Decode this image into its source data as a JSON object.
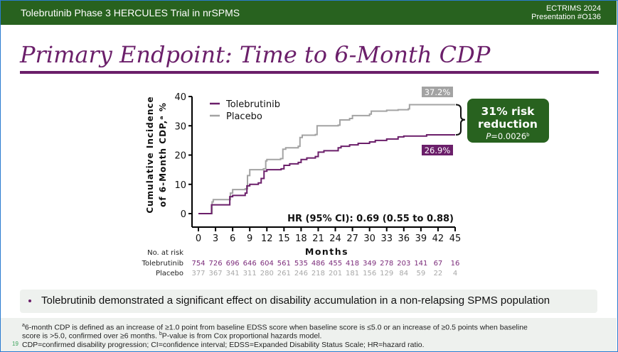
{
  "header": {
    "title": "Tolebrutinib Phase 3 HERCULES Trial in nrSPMS",
    "conference": "ECTRIMS 2024",
    "presentation": "Presentation #O136"
  },
  "slide_title": "Primary Endpoint: Time to 6-Month CDP",
  "chart_data": {
    "type": "line",
    "title": "",
    "xlabel": "Months",
    "ylabel": "Cumulative Incidence of 6-Month CDP,ᵃ %",
    "ylabel_line1": "Cumulative Incidence",
    "ylabel_line2": "of 6-Month CDP,ᵃ %",
    "xlim": [
      0,
      45
    ],
    "ylim": [
      0,
      40
    ],
    "xticks": [
      0,
      3,
      6,
      9,
      12,
      15,
      18,
      21,
      24,
      27,
      30,
      33,
      36,
      39,
      42,
      45
    ],
    "xtick_labels": [
      "0",
      "3",
      "6",
      "9",
      "12",
      "15",
      "18",
      "21",
      "24",
      "27",
      "30",
      "33",
      "36",
      "39",
      "42",
      "45"
    ],
    "yticks": [
      0,
      10,
      20,
      30,
      40
    ],
    "ytick_labels": [
      "0",
      "10",
      "20",
      "30",
      "40"
    ],
    "legend_position": "top-left",
    "grid": false,
    "series": [
      {
        "name": "Tolebrutinib",
        "color": "#6b1f6a",
        "steps": [
          [
            0,
            0
          ],
          [
            2.2,
            0
          ],
          [
            2.3,
            3
          ],
          [
            5.3,
            3
          ],
          [
            5.5,
            5.8
          ],
          [
            6,
            6.2
          ],
          [
            8.2,
            7
          ],
          [
            8.5,
            9.5
          ],
          [
            9,
            10
          ],
          [
            10.5,
            10.5
          ],
          [
            11,
            12
          ],
          [
            11.5,
            14.5
          ],
          [
            12,
            15
          ],
          [
            14.5,
            15.3
          ],
          [
            15,
            16.5
          ],
          [
            16,
            17
          ],
          [
            17.5,
            17.5
          ],
          [
            18,
            18.5
          ],
          [
            19,
            19
          ],
          [
            20.5,
            19.5
          ],
          [
            21,
            21
          ],
          [
            22,
            21.5
          ],
          [
            24.5,
            22.5
          ],
          [
            25,
            23
          ],
          [
            26.5,
            23.5
          ],
          [
            28,
            24
          ],
          [
            30,
            24.5
          ],
          [
            31,
            25
          ],
          [
            33,
            25.5
          ],
          [
            35,
            26.2
          ],
          [
            36,
            26.5
          ],
          [
            40,
            26.9
          ],
          [
            45,
            26.9
          ]
        ],
        "end_label": "26.9%"
      },
      {
        "name": "Placebo",
        "color": "#a3a3a3",
        "steps": [
          [
            0,
            0
          ],
          [
            2.2,
            0
          ],
          [
            2.4,
            4
          ],
          [
            2.6,
            4.8
          ],
          [
            5.4,
            4.8
          ],
          [
            5.6,
            7
          ],
          [
            6,
            8.2
          ],
          [
            8.2,
            8.5
          ],
          [
            8.6,
            13
          ],
          [
            9,
            15
          ],
          [
            11.4,
            15.3
          ],
          [
            11.8,
            18
          ],
          [
            12,
            18.5
          ],
          [
            14.4,
            18.8
          ],
          [
            14.8,
            22
          ],
          [
            15.3,
            22.5
          ],
          [
            17.5,
            23
          ],
          [
            17.8,
            26
          ],
          [
            18.2,
            26.8
          ],
          [
            20.5,
            27
          ],
          [
            20.8,
            30
          ],
          [
            24.5,
            30.2
          ],
          [
            24.8,
            32
          ],
          [
            26.5,
            32.5
          ],
          [
            27,
            33.5
          ],
          [
            30,
            34
          ],
          [
            30.3,
            35
          ],
          [
            33,
            35.3
          ],
          [
            35,
            35.5
          ],
          [
            36.8,
            35.8
          ],
          [
            37,
            37.2
          ],
          [
            45,
            37.2
          ]
        ],
        "end_label": "37.2%"
      }
    ],
    "annotation_hr": "HR (95% CI): 0.69 (0.55 to 0.88)",
    "risk_box": {
      "line1": "31% risk",
      "line2": "reduction",
      "p_prefix": "P",
      "p_value": "=0.0026",
      "p_sup": "b",
      "color": "#28621f"
    },
    "at_risk": {
      "header": "No. at risk",
      "rows": [
        {
          "label": "Tolebrutinib",
          "color": "#7b2b7a",
          "values": [
            "754",
            "726",
            "696",
            "646",
            "604",
            "561",
            "535",
            "486",
            "455",
            "418",
            "349",
            "278",
            "203",
            "141",
            "67",
            "16"
          ]
        },
        {
          "label": "Placebo",
          "color": "#a8a8a8",
          "values": [
            "377",
            "367",
            "341",
            "311",
            "280",
            "261",
            "246",
            "218",
            "201",
            "181",
            "156",
            "129",
            "84",
            "59",
            "22",
            "4"
          ]
        }
      ]
    }
  },
  "bullet": "Tolebrutinib demonstrated a significant effect on disability accumulation in a non-relapsing SPMS population",
  "footnotes": {
    "line1": "6-month CDP is defined as an increase of ≥1.0 point from baseline EDSS score when baseline score is ≤5.0 or an increase of ≥0.5 points when baseline",
    "line1_sup": "a",
    "line2a": "score is >5.0, confirmed over ≥6 months. ",
    "line2_sup": "b",
    "line2b": "P-value is from Cox proportional hazards model.",
    "line3": "CDP=confirmed disability progression; CI=confidence interval; EDSS=Expanded Disability Status Scale; HR=hazard ratio.",
    "page_number": "19"
  }
}
